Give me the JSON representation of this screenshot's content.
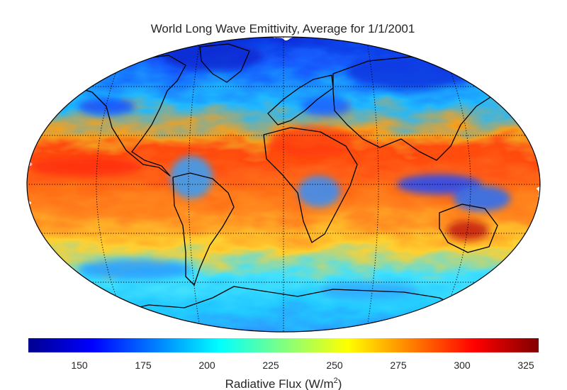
{
  "figure": {
    "title": "World Long Wave Emittivity, Average for 1/1/2001",
    "projection": "Robinson",
    "graticule": "dotted"
  },
  "colorbar": {
    "colormap": "jet",
    "range": [
      130,
      330
    ],
    "ticks": [
      "150",
      "175",
      "200",
      "225",
      "250",
      "275",
      "300",
      "325"
    ],
    "label_main": "Radiative Flux (W/m",
    "label_sup": "2",
    "label_end": ")"
  },
  "colors": {
    "low": "#00008f",
    "mid": "#80ff80",
    "high": "#800000",
    "coastline": "#000000"
  }
}
